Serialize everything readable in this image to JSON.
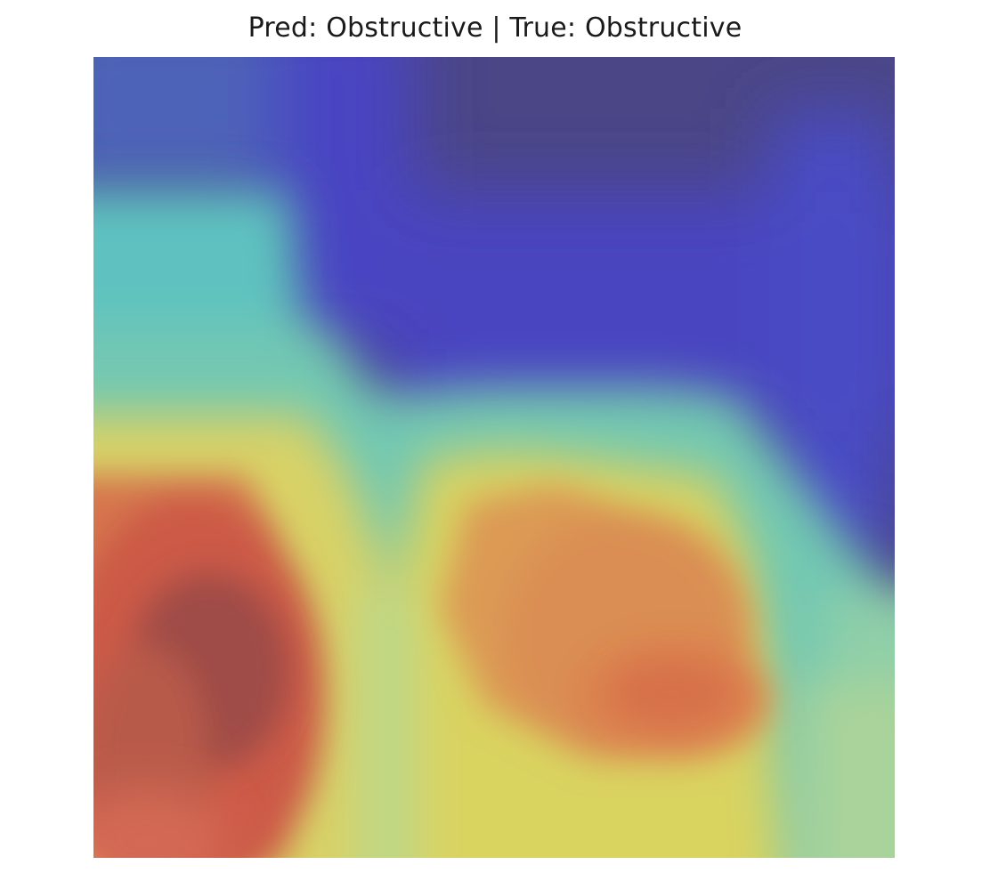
{
  "chart_data": {
    "type": "heatmap",
    "title": "Pred: Obstructive | True: Obstructive",
    "prediction": "Obstructive",
    "true_label": "Obstructive",
    "axes_visible": false,
    "colormap": "jet",
    "colors": {
      "low": "#4a4a9a",
      "mid_low": "#6fc8b4",
      "mid": "#e3d463",
      "high": "#d8664f",
      "peak": "#8a4a44"
    }
  }
}
